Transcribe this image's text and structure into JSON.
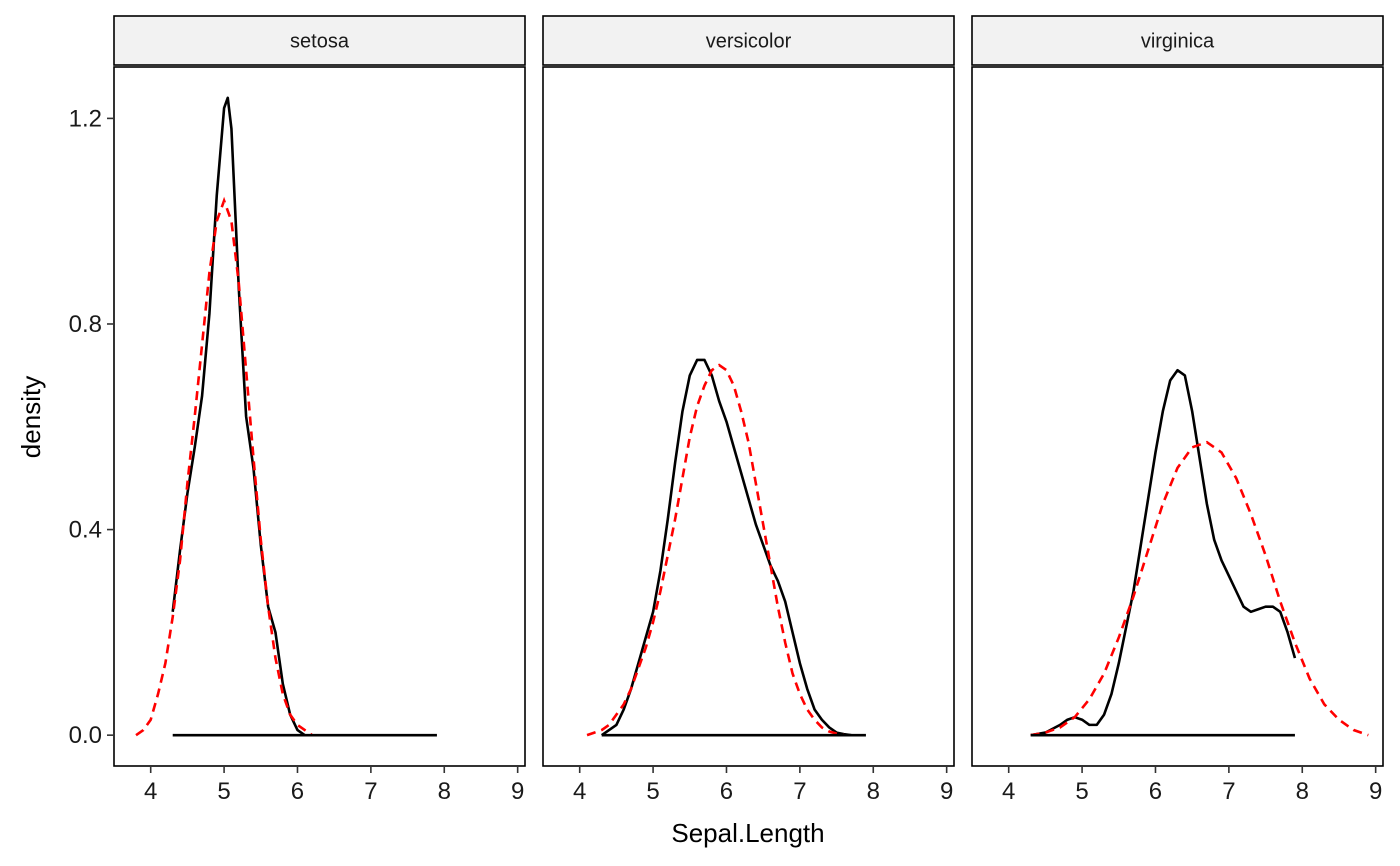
{
  "chart_data": {
    "type": "line",
    "xlabel": "Sepal.Length",
    "ylabel": "density",
    "xlim": [
      3.5,
      9.1
    ],
    "ylim": [
      -0.06,
      1.3
    ],
    "x_ticks": [
      4,
      5,
      6,
      7,
      8,
      9
    ],
    "y_ticks": [
      0.0,
      0.4,
      0.8,
      1.2
    ],
    "y_tick_labels": [
      "0.0",
      "0.4",
      "0.8",
      "1.2"
    ],
    "grid": false,
    "legend": "none",
    "colors": {
      "observed": "#000000",
      "normal": "#ff0000"
    },
    "panels": [
      {
        "name": "setosa",
        "baseline": [
          4.3,
          7.9
        ],
        "series": [
          {
            "style": "solid",
            "x": [
              4.3,
              4.4,
              4.5,
              4.6,
              4.7,
              4.8,
              4.9,
              5.0,
              5.05,
              5.1,
              5.2,
              5.3,
              5.4,
              5.5,
              5.6,
              5.7,
              5.8,
              5.9,
              6.0,
              6.1
            ],
            "y": [
              0.24,
              0.36,
              0.47,
              0.56,
              0.66,
              0.82,
              1.05,
              1.22,
              1.24,
              1.18,
              0.87,
              0.62,
              0.52,
              0.37,
              0.25,
              0.2,
              0.1,
              0.04,
              0.01,
              0.0
            ]
          },
          {
            "style": "dashed",
            "x": [
              3.8,
              3.9,
              4.0,
              4.1,
              4.2,
              4.3,
              4.4,
              4.5,
              4.6,
              4.7,
              4.8,
              4.9,
              5.0,
              5.1,
              5.2,
              5.3,
              5.4,
              5.5,
              5.6,
              5.7,
              5.8,
              5.9,
              6.0,
              6.1,
              6.2
            ],
            "y": [
              0.0,
              0.01,
              0.03,
              0.08,
              0.14,
              0.23,
              0.34,
              0.49,
              0.62,
              0.76,
              0.9,
              1.0,
              1.04,
              1.0,
              0.88,
              0.71,
              0.54,
              0.38,
              0.25,
              0.15,
              0.08,
              0.04,
              0.02,
              0.01,
              0.0
            ]
          }
        ]
      },
      {
        "name": "versicolor",
        "baseline": [
          4.3,
          7.9
        ],
        "series": [
          {
            "style": "solid",
            "x": [
              4.3,
              4.4,
              4.5,
              4.6,
              4.7,
              4.8,
              4.9,
              5.0,
              5.1,
              5.2,
              5.3,
              5.4,
              5.5,
              5.6,
              5.7,
              5.8,
              5.9,
              6.0,
              6.1,
              6.2,
              6.3,
              6.4,
              6.5,
              6.6,
              6.7,
              6.8,
              6.9,
              7.0,
              7.1,
              7.2,
              7.3,
              7.4,
              7.5,
              7.6,
              7.7
            ],
            "y": [
              0.0,
              0.01,
              0.02,
              0.05,
              0.09,
              0.14,
              0.19,
              0.24,
              0.32,
              0.42,
              0.53,
              0.63,
              0.7,
              0.73,
              0.73,
              0.7,
              0.65,
              0.61,
              0.56,
              0.51,
              0.46,
              0.41,
              0.37,
              0.33,
              0.3,
              0.26,
              0.2,
              0.14,
              0.09,
              0.05,
              0.03,
              0.015,
              0.005,
              0.002,
              0.0
            ]
          },
          {
            "style": "dashed",
            "x": [
              4.1,
              4.2,
              4.3,
              4.4,
              4.5,
              4.6,
              4.7,
              4.8,
              4.9,
              5.0,
              5.1,
              5.2,
              5.3,
              5.4,
              5.5,
              5.6,
              5.7,
              5.8,
              5.9,
              6.0,
              6.1,
              6.2,
              6.3,
              6.4,
              6.5,
              6.6,
              6.7,
              6.8,
              6.9,
              7.0,
              7.1,
              7.2,
              7.3,
              7.4,
              7.5,
              7.6
            ],
            "y": [
              0.0,
              0.005,
              0.01,
              0.02,
              0.04,
              0.06,
              0.09,
              0.13,
              0.17,
              0.22,
              0.28,
              0.35,
              0.42,
              0.5,
              0.58,
              0.64,
              0.68,
              0.71,
              0.72,
              0.71,
              0.68,
              0.63,
              0.57,
              0.49,
              0.41,
              0.33,
              0.25,
              0.18,
              0.12,
              0.08,
              0.05,
              0.03,
              0.015,
              0.007,
              0.003,
              0.0
            ]
          }
        ]
      },
      {
        "name": "virginica",
        "baseline": [
          4.3,
          7.9
        ],
        "series": [
          {
            "style": "solid",
            "x": [
              4.3,
              4.5,
              4.7,
              4.8,
              4.9,
              5.0,
              5.1,
              5.2,
              5.3,
              5.4,
              5.5,
              5.6,
              5.7,
              5.8,
              5.9,
              6.0,
              6.1,
              6.2,
              6.3,
              6.4,
              6.5,
              6.6,
              6.7,
              6.8,
              6.9,
              7.0,
              7.1,
              7.2,
              7.3,
              7.4,
              7.5,
              7.6,
              7.7,
              7.8,
              7.9
            ],
            "y": [
              0.0,
              0.005,
              0.02,
              0.03,
              0.035,
              0.03,
              0.02,
              0.02,
              0.04,
              0.08,
              0.14,
              0.21,
              0.28,
              0.37,
              0.46,
              0.55,
              0.63,
              0.69,
              0.71,
              0.7,
              0.63,
              0.54,
              0.45,
              0.38,
              0.34,
              0.31,
              0.28,
              0.25,
              0.24,
              0.245,
              0.25,
              0.25,
              0.24,
              0.2,
              0.15
            ]
          },
          {
            "style": "dashed",
            "x": [
              4.3,
              4.5,
              4.7,
              4.9,
              5.1,
              5.3,
              5.5,
              5.7,
              5.9,
              6.1,
              6.3,
              6.5,
              6.7,
              6.9,
              7.1,
              7.3,
              7.5,
              7.7,
              7.9,
              8.1,
              8.3,
              8.5,
              8.7,
              8.9
            ],
            "y": [
              0.0,
              0.005,
              0.015,
              0.035,
              0.07,
              0.12,
              0.19,
              0.27,
              0.36,
              0.45,
              0.52,
              0.56,
              0.57,
              0.55,
              0.5,
              0.43,
              0.35,
              0.26,
              0.18,
              0.11,
              0.06,
              0.03,
              0.01,
              0.0
            ]
          }
        ]
      }
    ]
  }
}
